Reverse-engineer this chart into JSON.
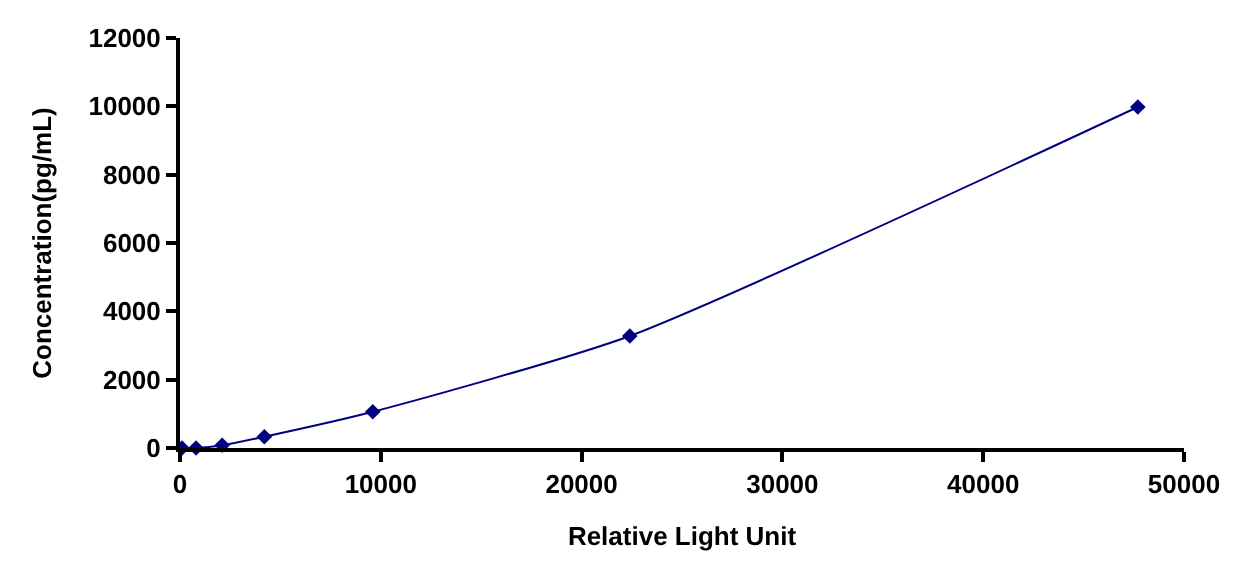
{
  "chart_data": {
    "type": "line",
    "xlabel": "Relative Light Unit",
    "ylabel": "Concentration(pg/mL)",
    "x": [
      100,
      800,
      2100,
      4200,
      9600,
      22400,
      47700
    ],
    "series": [
      {
        "color": "#000080",
        "values": [
          0,
          0,
          80,
          330,
          1060,
          3280,
          9980
        ]
      }
    ],
    "xlim": [
      0,
      50000
    ],
    "xticks": [
      0,
      10000,
      20000,
      30000,
      40000,
      50000
    ],
    "ylim": [
      0,
      12000
    ],
    "yticks": [
      0,
      2000,
      4000,
      6000,
      8000,
      10000,
      12000
    ],
    "legend": false,
    "marker": "diamond",
    "line_style": "solid"
  }
}
